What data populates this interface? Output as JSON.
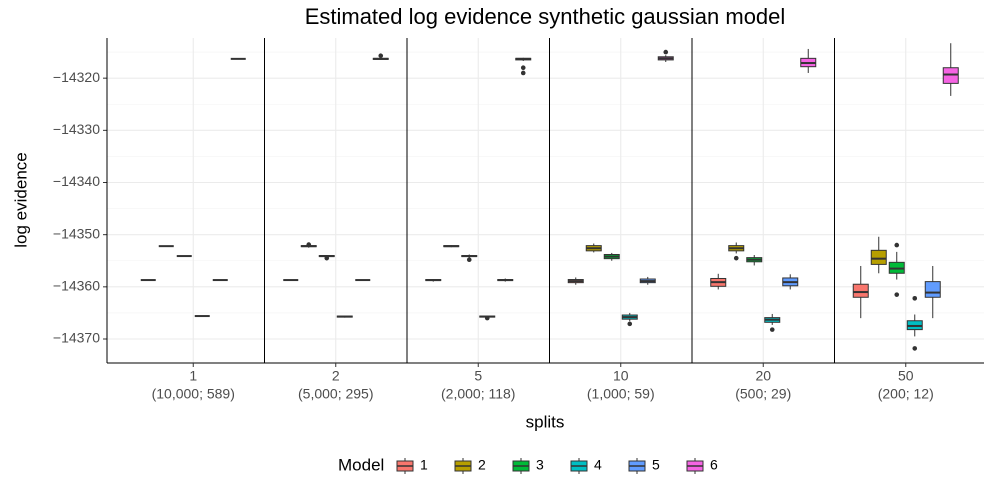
{
  "chart_data": {
    "type": "boxplot",
    "title": "Estimated log evidence synthetic gaussian model",
    "x_label": "splits",
    "y_label": "log evidence",
    "legend_title": "Model",
    "legend_position": "bottom",
    "grid": true,
    "categories": [
      "1",
      "2",
      "5",
      "10",
      "20",
      "50"
    ],
    "sublabels": [
      "(10,000; 589)",
      "(5,000; 295)",
      "(2,000; 118)",
      "(1,000; 59)",
      "(500; 29)",
      "(200; 12)"
    ],
    "ylim": [
      -14374.6,
      -14312.3
    ],
    "yticks": [
      {
        "value": -14370,
        "label": "−14370"
      },
      {
        "value": -14360,
        "label": "−14360"
      },
      {
        "value": -14350,
        "label": "−14350"
      },
      {
        "value": -14340,
        "label": "−14340"
      },
      {
        "value": -14330,
        "label": "−14330"
      },
      {
        "value": -14320,
        "label": "−14320"
      }
    ],
    "series": [
      {
        "name": "1",
        "color": "#F8766D",
        "values": [
          {
            "min": -14358.7,
            "q1": -14358.7,
            "median": -14358.7,
            "q3": -14358.7,
            "max": -14358.7,
            "outliers": []
          },
          {
            "min": -14358.7,
            "q1": -14358.7,
            "median": -14358.7,
            "q3": -14358.7,
            "max": -14358.7,
            "outliers": []
          },
          {
            "min": -14359.0,
            "q1": -14358.8,
            "median": -14358.7,
            "q3": -14358.6,
            "max": -14358.5,
            "outliers": []
          },
          {
            "min": -14359.6,
            "q1": -14359.2,
            "median": -14358.9,
            "q3": -14358.6,
            "max": -14358.2,
            "outliers": []
          },
          {
            "min": -14360.5,
            "q1": -14359.9,
            "median": -14359.1,
            "q3": -14358.4,
            "max": -14357.5,
            "outliers": []
          },
          {
            "min": -14366.0,
            "q1": -14362.0,
            "median": -14361.0,
            "q3": -14359.5,
            "max": -14356.0,
            "outliers": []
          }
        ]
      },
      {
        "name": "2",
        "color": "#B79F00",
        "values": [
          {
            "min": -14352.2,
            "q1": -14352.2,
            "median": -14352.2,
            "q3": -14352.2,
            "max": -14352.2,
            "outliers": []
          },
          {
            "min": -14352.5,
            "q1": -14352.3,
            "median": -14352.2,
            "q3": -14352.1,
            "max": -14352.0,
            "outliers": [
              -14351.9
            ]
          },
          {
            "min": -14352.4,
            "q1": -14352.3,
            "median": -14352.2,
            "q3": -14352.1,
            "max": -14352.0,
            "outliers": []
          },
          {
            "min": -14353.4,
            "q1": -14353.1,
            "median": -14352.6,
            "q3": -14352.1,
            "max": -14351.7,
            "outliers": []
          },
          {
            "min": -14353.6,
            "q1": -14353.1,
            "median": -14352.6,
            "q3": -14352.1,
            "max": -14351.5,
            "outliers": [
              -14354.5
            ]
          },
          {
            "min": -14357.4,
            "q1": -14355.7,
            "median": -14354.6,
            "q3": -14353.0,
            "max": -14350.4,
            "outliers": []
          }
        ]
      },
      {
        "name": "3",
        "color": "#00BA38",
        "values": [
          {
            "min": -14354.1,
            "q1": -14354.1,
            "median": -14354.1,
            "q3": -14354.1,
            "max": -14354.1,
            "outliers": []
          },
          {
            "min": -14354.3,
            "q1": -14354.2,
            "median": -14354.1,
            "q3": -14354.0,
            "max": -14353.9,
            "outliers": [
              -14354.5
            ]
          },
          {
            "min": -14354.4,
            "q1": -14354.2,
            "median": -14354.1,
            "q3": -14354.0,
            "max": -14353.8,
            "outliers": [
              -14354.8
            ]
          },
          {
            "min": -14355.0,
            "q1": -14354.6,
            "median": -14354.2,
            "q3": -14353.8,
            "max": -14353.5,
            "outliers": []
          },
          {
            "min": -14355.9,
            "q1": -14355.2,
            "median": -14354.8,
            "q3": -14354.4,
            "max": -14353.9,
            "outliers": []
          },
          {
            "min": -14358.6,
            "q1": -14357.4,
            "median": -14356.5,
            "q3": -14355.3,
            "max": -14353.3,
            "outliers": [
              -14352.0,
              -14361.5
            ]
          }
        ]
      },
      {
        "name": "4",
        "color": "#00BFC4",
        "values": [
          {
            "min": -14365.6,
            "q1": -14365.6,
            "median": -14365.6,
            "q3": -14365.6,
            "max": -14365.6,
            "outliers": []
          },
          {
            "min": -14365.9,
            "q1": -14365.8,
            "median": -14365.7,
            "q3": -14365.6,
            "max": -14365.5,
            "outliers": []
          },
          {
            "min": -14365.9,
            "q1": -14365.8,
            "median": -14365.7,
            "q3": -14365.6,
            "max": -14365.5,
            "outliers": [
              -14366.0
            ]
          },
          {
            "min": -14366.6,
            "q1": -14366.2,
            "median": -14365.8,
            "q3": -14365.4,
            "max": -14365.0,
            "outliers": [
              -14367.1
            ]
          },
          {
            "min": -14367.3,
            "q1": -14366.8,
            "median": -14366.3,
            "q3": -14365.9,
            "max": -14365.2,
            "outliers": [
              -14368.2
            ]
          },
          {
            "min": -14369.5,
            "q1": -14368.2,
            "median": -14367.5,
            "q3": -14366.5,
            "max": -14365.3,
            "outliers": [
              -14362.2,
              -14371.8
            ]
          }
        ]
      },
      {
        "name": "5",
        "color": "#619CFF",
        "values": [
          {
            "min": -14358.7,
            "q1": -14358.7,
            "median": -14358.7,
            "q3": -14358.7,
            "max": -14358.7,
            "outliers": []
          },
          {
            "min": -14358.7,
            "q1": -14358.7,
            "median": -14358.7,
            "q3": -14358.7,
            "max": -14358.7,
            "outliers": []
          },
          {
            "min": -14359.0,
            "q1": -14358.8,
            "median": -14358.7,
            "q3": -14358.6,
            "max": -14358.4,
            "outliers": []
          },
          {
            "min": -14359.6,
            "q1": -14359.2,
            "median": -14358.9,
            "q3": -14358.5,
            "max": -14358.1,
            "outliers": []
          },
          {
            "min": -14360.5,
            "q1": -14359.8,
            "median": -14359.1,
            "q3": -14358.3,
            "max": -14357.6,
            "outliers": []
          },
          {
            "min": -14366.0,
            "q1": -14362.0,
            "median": -14361.1,
            "q3": -14359.0,
            "max": -14356.0,
            "outliers": []
          }
        ]
      },
      {
        "name": "6",
        "color": "#F564E3",
        "values": [
          {
            "min": -14316.3,
            "q1": -14316.3,
            "median": -14316.3,
            "q3": -14316.3,
            "max": -14316.3,
            "outliers": []
          },
          {
            "min": -14316.5,
            "q1": -14316.4,
            "median": -14316.3,
            "q3": -14316.2,
            "max": -14316.1,
            "outliers": [
              -14315.7
            ]
          },
          {
            "min": -14316.7,
            "q1": -14316.5,
            "median": -14316.3,
            "q3": -14316.2,
            "max": -14316.1,
            "outliers": [
              -14318.0,
              -14319.0
            ]
          },
          {
            "min": -14316.9,
            "q1": -14316.5,
            "median": -14316.2,
            "q3": -14315.9,
            "max": -14315.6,
            "outliers": [
              -14315.0
            ]
          },
          {
            "min": -14319.0,
            "q1": -14317.8,
            "median": -14317.1,
            "q3": -14316.2,
            "max": -14314.4,
            "outliers": []
          },
          {
            "min": -14323.4,
            "q1": -14321.0,
            "median": -14319.3,
            "q3": -14318.0,
            "max": -14313.3,
            "outliers": []
          }
        ]
      }
    ]
  }
}
